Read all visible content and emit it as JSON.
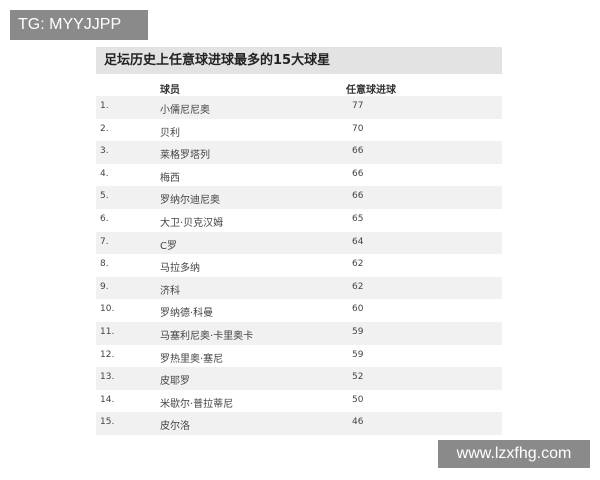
{
  "watermarks": {
    "top_left": "TG: MYYJJPP",
    "bottom_right": "www.lzxfhg.com"
  },
  "table": {
    "title": "足坛历史上任意球进球最多的15大球星",
    "headers": {
      "player": "球员",
      "goals": "任意球进球"
    },
    "rows": [
      {
        "rank": "1.",
        "name": "小儒尼尼奥",
        "goals": "77"
      },
      {
        "rank": "2.",
        "name": "贝利",
        "goals": "70"
      },
      {
        "rank": "3.",
        "name": "莱格罗塔列",
        "goals": "66"
      },
      {
        "rank": "4.",
        "name": "梅西",
        "goals": "66"
      },
      {
        "rank": "5.",
        "name": "罗纳尔迪尼奥",
        "goals": "66"
      },
      {
        "rank": "6.",
        "name": "大卫·贝克汉姆",
        "goals": "65"
      },
      {
        "rank": "7.",
        "name": "C罗",
        "goals": "64"
      },
      {
        "rank": "8.",
        "name": "马拉多纳",
        "goals": "62"
      },
      {
        "rank": "9.",
        "name": "济科",
        "goals": "62"
      },
      {
        "rank": "10.",
        "name": "罗纳德·科曼",
        "goals": "60"
      },
      {
        "rank": "11.",
        "name": "马塞利尼奥·卡里奥卡",
        "goals": "59"
      },
      {
        "rank": "12.",
        "name": "罗热里奥·塞尼",
        "goals": "59"
      },
      {
        "rank": "13.",
        "name": "皮耶罗",
        "goals": "52"
      },
      {
        "rank": "14.",
        "name": "米歇尔·普拉蒂尼",
        "goals": "50"
      },
      {
        "rank": "15.",
        "name": "皮尔洛",
        "goals": "46"
      }
    ]
  }
}
